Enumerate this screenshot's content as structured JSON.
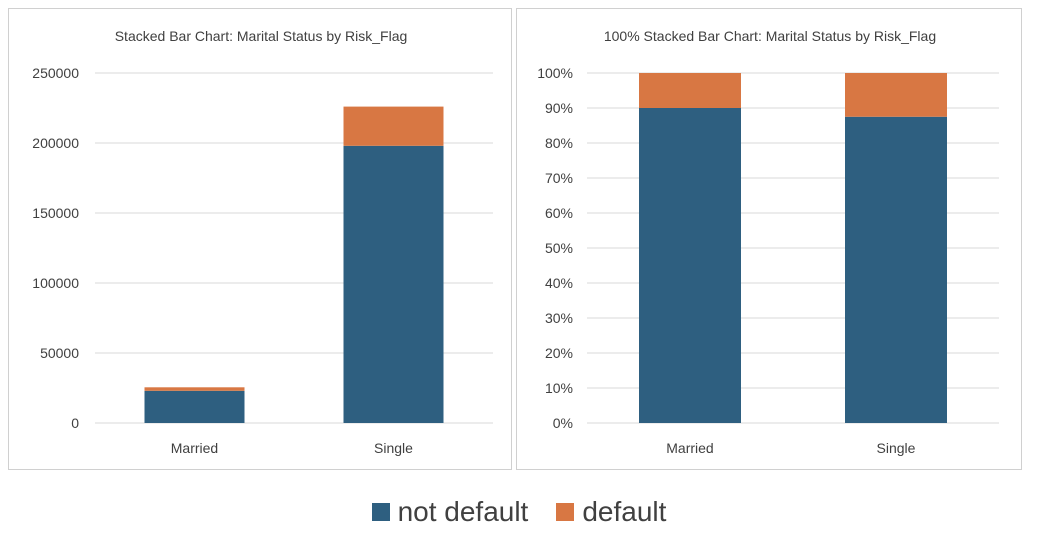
{
  "colors": {
    "not_default": "#2e5f80",
    "default": "#d87743",
    "grid": "#d9d9d9",
    "text": "#404040"
  },
  "legend": {
    "items": [
      {
        "label": "not default",
        "color": "#2e5f80"
      },
      {
        "label": "default",
        "color": "#d87743"
      }
    ]
  },
  "chart_data": [
    {
      "type": "bar",
      "stacked": true,
      "title": "Stacked Bar Chart: Marital Status by Risk_Flag",
      "categories": [
        "Married",
        "Single"
      ],
      "series": [
        {
          "name": "not default",
          "values": [
            23000,
            198000
          ]
        },
        {
          "name": "default",
          "values": [
            2500,
            28000
          ]
        }
      ],
      "ylim": [
        0,
        250000
      ],
      "yticks": [
        "0",
        "50000",
        "100000",
        "150000",
        "200000",
        "250000"
      ],
      "grid": true
    },
    {
      "type": "bar",
      "stacked": true,
      "percent": true,
      "title": "100% Stacked Bar Chart: Marital Status by Risk_Flag",
      "categories": [
        "Married",
        "Single"
      ],
      "series": [
        {
          "name": "not default",
          "values": [
            0.9,
            0.875
          ]
        },
        {
          "name": "default",
          "values": [
            0.1,
            0.125
          ]
        }
      ],
      "ylim": [
        0,
        1
      ],
      "yticks": [
        "0%",
        "10%",
        "20%",
        "30%",
        "40%",
        "50%",
        "60%",
        "70%",
        "80%",
        "90%",
        "100%"
      ],
      "grid": true
    }
  ]
}
